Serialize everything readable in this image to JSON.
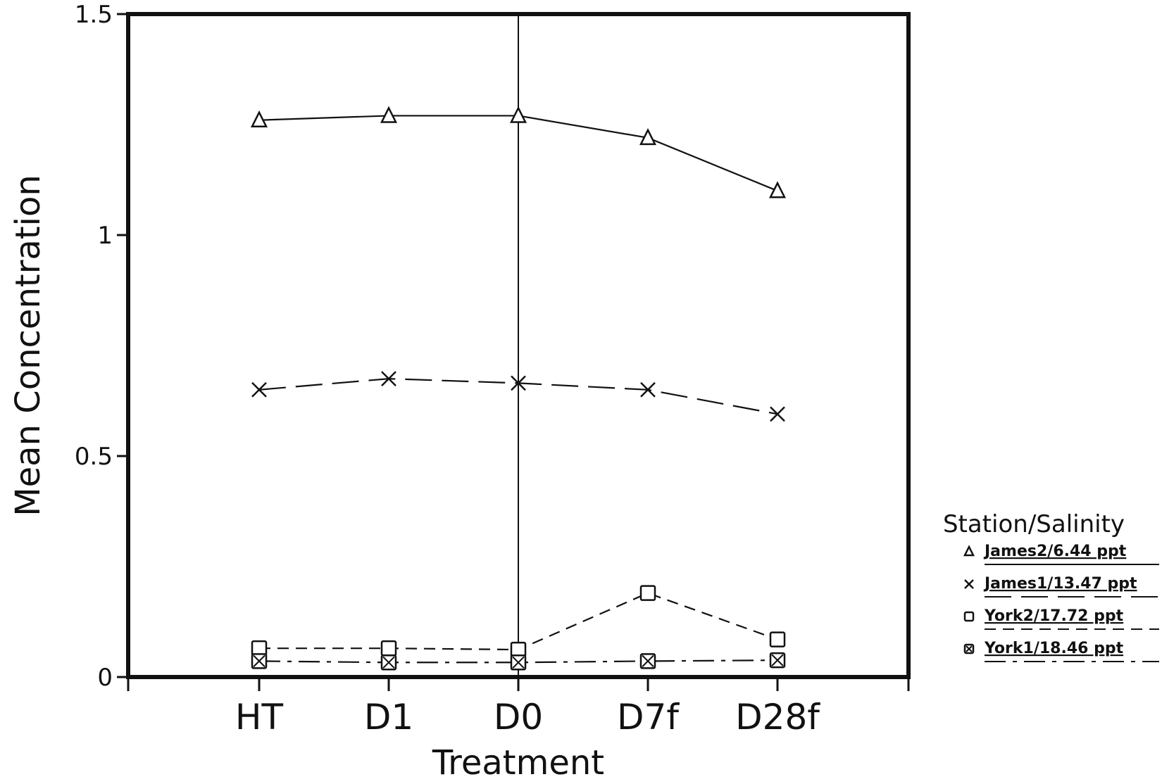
{
  "chart_data": {
    "type": "line",
    "categories": [
      "HT",
      "D1",
      "D0",
      "D7f",
      "D28f"
    ],
    "xlabel": "Treatment",
    "ylabel": "Mean Concentration",
    "ylim": [
      0,
      1.5
    ],
    "yticks": [
      "0",
      "0.5",
      "1",
      "1.5"
    ],
    "grid": false,
    "legend_title": "Station/Salinity",
    "legend_position": "right",
    "series": [
      {
        "name": "James2/6.44 ppt",
        "marker": "triangle",
        "line": "solid",
        "values": [
          1.26,
          1.27,
          1.27,
          1.22,
          1.1
        ]
      },
      {
        "name": "James1/13.47 ppt",
        "marker": "x",
        "line": "long-dash",
        "values": [
          0.65,
          0.675,
          0.665,
          0.65,
          0.595
        ]
      },
      {
        "name": "York2/17.72 ppt",
        "marker": "square",
        "line": "short-dash",
        "values": [
          0.065,
          0.065,
          0.062,
          0.19,
          0.085
        ]
      },
      {
        "name": "York1/18.46 ppt",
        "marker": "crossed-square",
        "line": "dash-dot",
        "values": [
          0.036,
          0.033,
          0.033,
          0.036,
          0.038
        ]
      }
    ]
  }
}
